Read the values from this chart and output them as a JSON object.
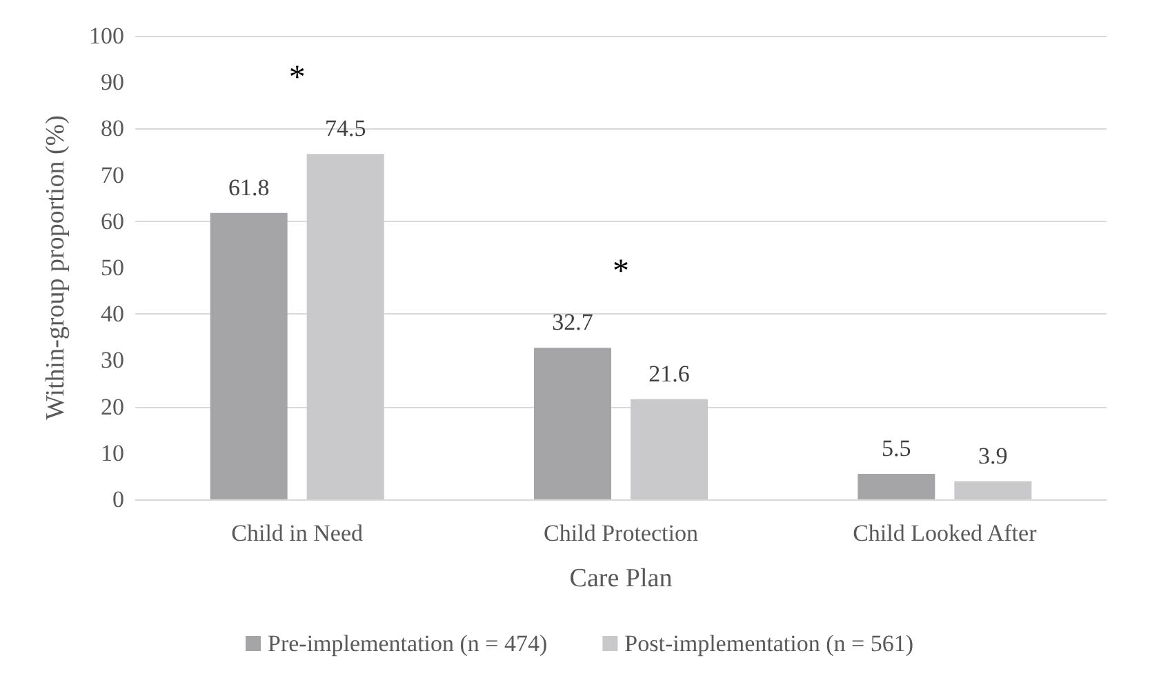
{
  "chart_data": {
    "type": "bar",
    "xlabel": "Care Plan",
    "ylabel": "Within-group proportion (%)",
    "categories": [
      "Child in Need",
      "Child Protection",
      "Child Looked After"
    ],
    "series": [
      {
        "name": "Pre-implementation (n = 474)",
        "color": "#a5a5a7",
        "values": [
          61.8,
          32.7,
          5.5
        ]
      },
      {
        "name": "Post-implementation (n = 561)",
        "color": "#c9c9cb",
        "values": [
          74.5,
          21.6,
          3.9
        ]
      }
    ],
    "ylim": [
      0,
      100
    ],
    "yticks": [
      0,
      10,
      20,
      30,
      40,
      50,
      60,
      70,
      80,
      90,
      100
    ],
    "grid": "y",
    "legend": "bottom",
    "data_labels": true,
    "annotations": [
      "*",
      "*"
    ]
  }
}
